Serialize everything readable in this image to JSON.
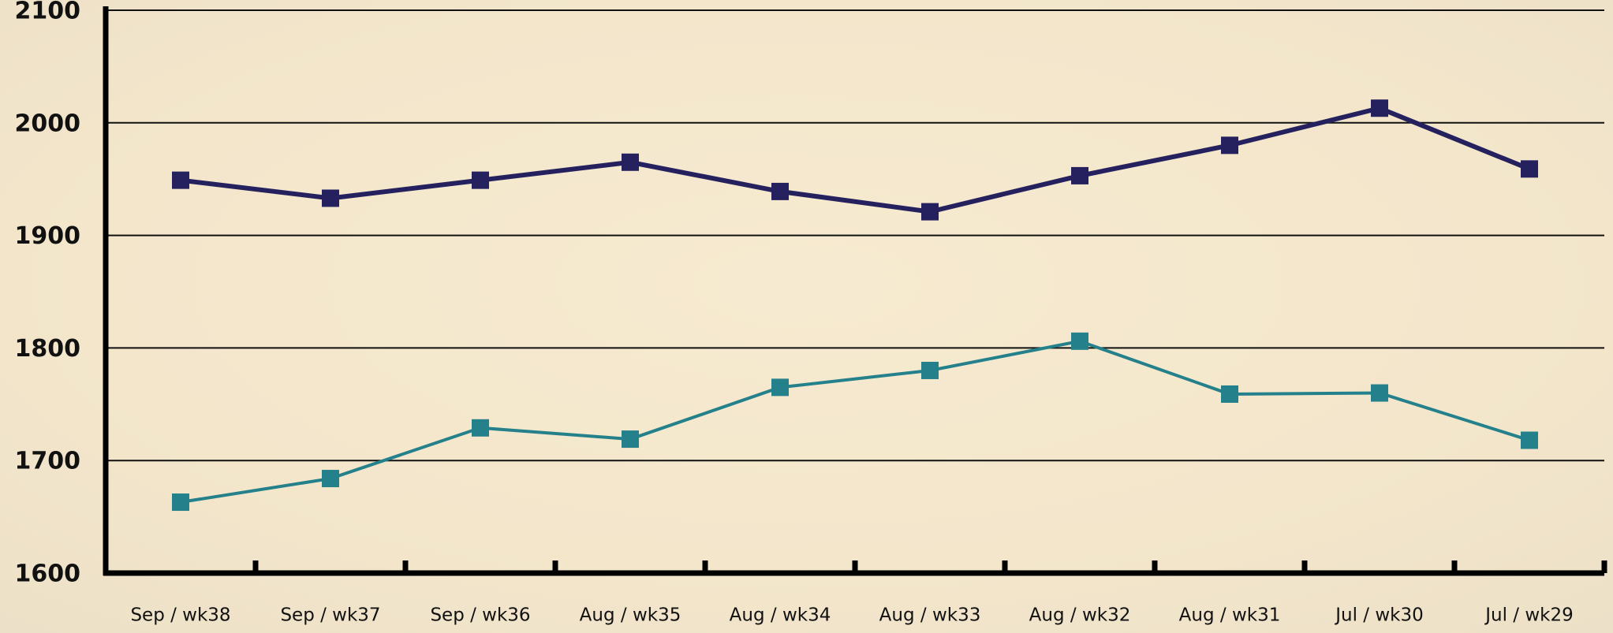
{
  "chart_data": {
    "type": "line",
    "categories": [
      "Sep / wk38",
      "Sep / wk37",
      "Sep / wk36",
      "Aug / wk35",
      "Aug / wk34",
      "Aug / wk33",
      "Aug / wk32",
      "Aug / wk31",
      "Jul / wk30",
      "Jul / wk29"
    ],
    "series": [
      {
        "color": "#25215e",
        "values": [
          1949,
          1933,
          1949,
          1965,
          1939,
          1921,
          1953,
          1980,
          2013,
          1959
        ]
      },
      {
        "color": "#24808a",
        "values": [
          1663,
          1684,
          1729,
          1719,
          1765,
          1780,
          1806,
          1759,
          1760,
          1718
        ]
      }
    ],
    "ylim": [
      1600,
      2100
    ],
    "yticks": [
      1600,
      1700,
      1800,
      1900,
      2000,
      2100
    ],
    "grid": true
  }
}
